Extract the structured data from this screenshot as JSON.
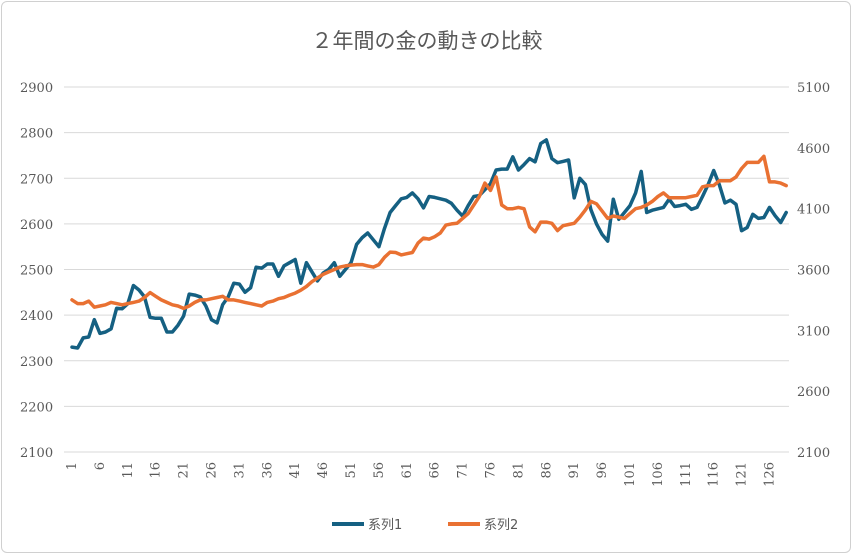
{
  "chart_data": {
    "type": "line",
    "title": "２年間の金の動きの比較",
    "xlabel": "",
    "ylabel": "",
    "x_start": 1,
    "x_tick_step": 5,
    "x_tick_labels": [
      "1",
      "6",
      "11",
      "16",
      "21",
      "26",
      "31",
      "36",
      "41",
      "46",
      "51",
      "56",
      "61",
      "66",
      "71",
      "76",
      "81",
      "86",
      "91",
      "96",
      "101",
      "106",
      "111",
      "116",
      "121",
      "126"
    ],
    "ylim_left": [
      2100,
      2900
    ],
    "yticks_left": [
      2100,
      2200,
      2300,
      2400,
      2500,
      2600,
      2700,
      2800,
      2900
    ],
    "ylim_right": [
      2100,
      5100
    ],
    "yticks_right": [
      2100,
      2600,
      3100,
      3600,
      4100,
      4600,
      5100
    ],
    "grid": true,
    "legend_position": "bottom",
    "series": [
      {
        "name": "系列1",
        "axis": "left",
        "color": "#156082",
        "values": [
          2330,
          2328,
          2350,
          2352,
          2390,
          2360,
          2363,
          2370,
          2415,
          2414,
          2425,
          2465,
          2455,
          2440,
          2395,
          2393,
          2393,
          2363,
          2363,
          2378,
          2398,
          2446,
          2444,
          2440,
          2420,
          2390,
          2383,
          2423,
          2440,
          2470,
          2468,
          2450,
          2460,
          2505,
          2503,
          2512,
          2512,
          2485,
          2508,
          2515,
          2522,
          2470,
          2515,
          2495,
          2475,
          2492,
          2500,
          2515,
          2485,
          2500,
          2515,
          2555,
          2570,
          2580,
          2565,
          2550,
          2590,
          2625,
          2640,
          2655,
          2658,
          2668,
          2655,
          2635,
          2660,
          2658,
          2655,
          2652,
          2645,
          2630,
          2617,
          2640,
          2660,
          2662,
          2675,
          2688,
          2718,
          2720,
          2720,
          2747,
          2718,
          2730,
          2743,
          2736,
          2776,
          2784,
          2743,
          2734,
          2737,
          2740,
          2657,
          2700,
          2686,
          2631,
          2600,
          2577,
          2562,
          2654,
          2610,
          2625,
          2640,
          2668,
          2715,
          2625,
          2630,
          2633,
          2636,
          2654,
          2638,
          2640,
          2643,
          2632,
          2636,
          2660,
          2686,
          2717,
          2686,
          2646,
          2652,
          2643,
          2585,
          2592,
          2621,
          2612,
          2614,
          2636,
          2618,
          2603,
          2625
        ]
      },
      {
        "name": "系列2",
        "axis": "right",
        "color": "#E97132",
        "values": [
          3350,
          3320,
          3320,
          3340,
          3290,
          3300,
          3310,
          3330,
          3320,
          3310,
          3320,
          3330,
          3340,
          3370,
          3410,
          3380,
          3350,
          3330,
          3310,
          3300,
          3280,
          3300,
          3330,
          3350,
          3350,
          3360,
          3370,
          3380,
          3350,
          3350,
          3340,
          3330,
          3320,
          3310,
          3300,
          3330,
          3340,
          3360,
          3370,
          3390,
          3406,
          3430,
          3460,
          3500,
          3530,
          3560,
          3580,
          3600,
          3620,
          3630,
          3636,
          3640,
          3640,
          3630,
          3620,
          3640,
          3700,
          3743,
          3740,
          3720,
          3730,
          3740,
          3817,
          3858,
          3850,
          3870,
          3900,
          3965,
          3975,
          3980,
          4020,
          4060,
          4130,
          4200,
          4310,
          4250,
          4360,
          4130,
          4100,
          4100,
          4110,
          4100,
          3950,
          3910,
          3990,
          3990,
          3980,
          3920,
          3960,
          3970,
          3980,
          4030,
          4090,
          4160,
          4140,
          4080,
          4020,
          4040,
          4030,
          4020,
          4060,
          4100,
          4110,
          4130,
          4160,
          4200,
          4230,
          4190,
          4190,
          4190,
          4190,
          4200,
          4210,
          4280,
          4290,
          4290,
          4330,
          4330,
          4330,
          4360,
          4430,
          4480,
          4480,
          4480,
          4530,
          4320,
          4320,
          4310,
          4290
        ]
      }
    ]
  }
}
